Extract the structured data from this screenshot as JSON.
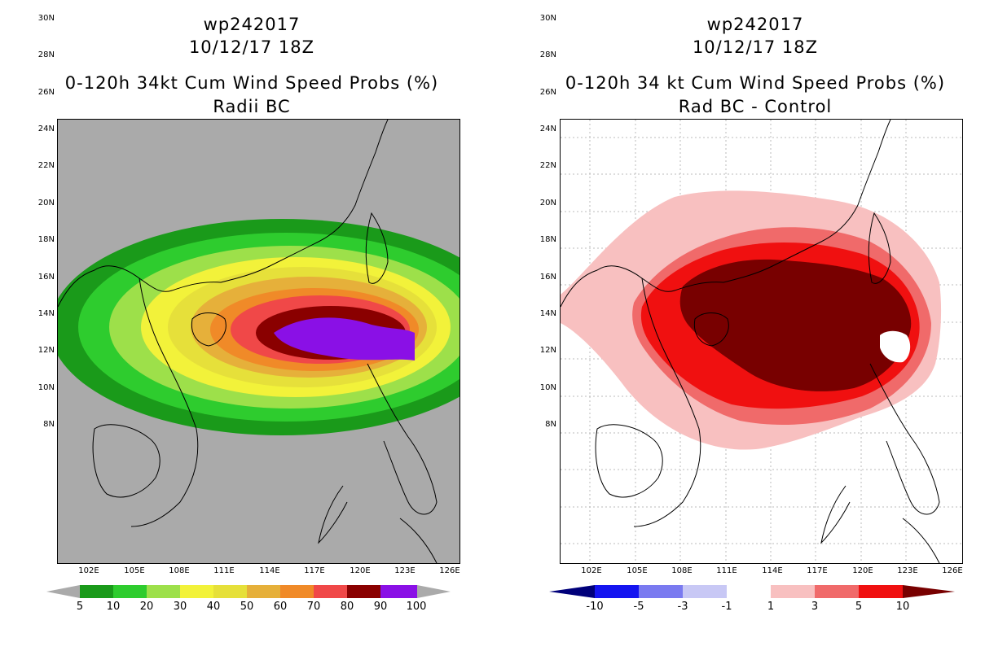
{
  "left": {
    "title_line1": "wp242017",
    "title_line2": "10/12/17 18Z",
    "title_line3": "0-120h 34kt Cum Wind Speed Probs (%)",
    "title_line4": "Radii BC",
    "lat_labels": [
      "30N",
      "28N",
      "26N",
      "24N",
      "22N",
      "20N",
      "18N",
      "16N",
      "14N",
      "12N",
      "10N",
      "8N"
    ],
    "lon_labels": [
      "102E",
      "105E",
      "108E",
      "111E",
      "114E",
      "117E",
      "120E",
      "123E",
      "126E"
    ],
    "colorbar": {
      "colors": [
        "#1a9a1a",
        "#2ecc2e",
        "#9de04a",
        "#f2f23a",
        "#e6e03a",
        "#e6b03a",
        "#f08a28",
        "#f04848",
        "#8a0000",
        "#8a10e6"
      ],
      "labels": [
        "5",
        "10",
        "20",
        "30",
        "40",
        "50",
        "60",
        "70",
        "80",
        "90",
        "100"
      ]
    },
    "region_colors": {
      "background": "#aaaaaa",
      "coast": "#000000"
    }
  },
  "right": {
    "title_line1": "wp242017",
    "title_line2": "10/12/17 18Z",
    "title_line3": "0-120h 34 kt Cum Wind Speed Probs (%)",
    "title_line4": "Rad BC - Control",
    "lat_labels": [
      "30N",
      "28N",
      "26N",
      "24N",
      "22N",
      "20N",
      "18N",
      "16N",
      "14N",
      "12N",
      "10N",
      "8N"
    ],
    "lon_labels": [
      "102E",
      "105E",
      "108E",
      "111E",
      "114E",
      "117E",
      "120E",
      "123E",
      "126E"
    ],
    "colorbar": {
      "colors": [
        "#00007a",
        "#1414f0",
        "#7a7af0",
        "#c8c8f5",
        "#ffffff",
        "#f8c0c0",
        "#f06a6a",
        "#f01010",
        "#780000"
      ],
      "labels": [
        "-10",
        "-5",
        "-3",
        "-1",
        "1",
        "3",
        "5",
        "10"
      ]
    }
  }
}
